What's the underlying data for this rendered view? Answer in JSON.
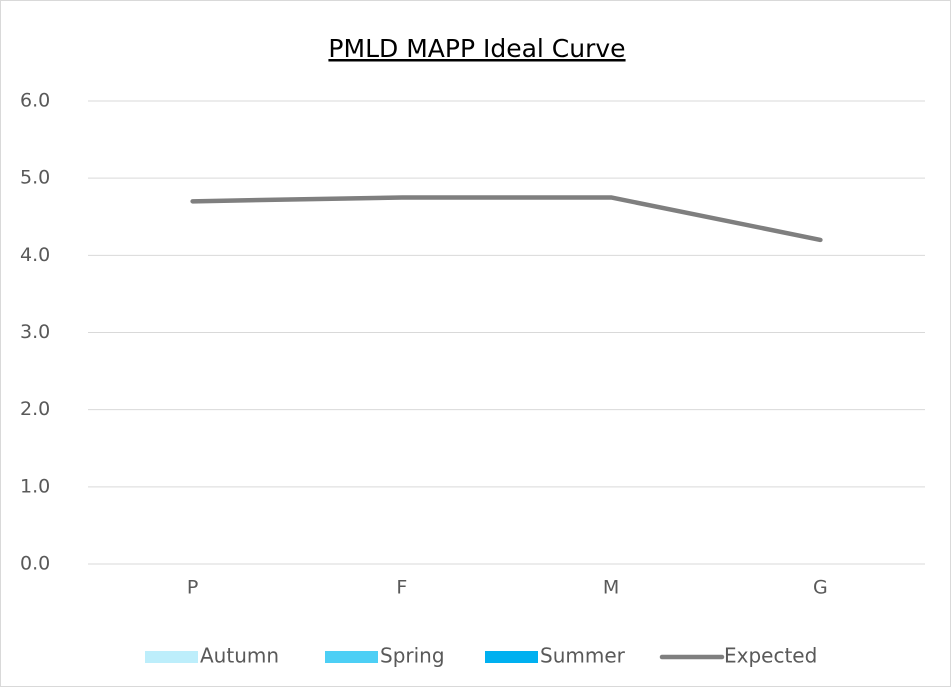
{
  "chart_data": {
    "type": "line",
    "title": "PMLD MAPP Ideal Curve",
    "categories": [
      "P",
      "F",
      "M",
      "G"
    ],
    "series": [
      {
        "name": "Autumn",
        "type": "bar",
        "color": "#bdeefb",
        "values": [
          null,
          null,
          null,
          null
        ]
      },
      {
        "name": "Spring",
        "type": "bar",
        "color": "#4dcff5",
        "values": [
          null,
          null,
          null,
          null
        ]
      },
      {
        "name": "Summer",
        "type": "bar",
        "color": "#00b0f0",
        "values": [
          null,
          null,
          null,
          null
        ]
      },
      {
        "name": "Expected",
        "type": "line",
        "color": "#7f7f7f",
        "values": [
          4.7,
          4.75,
          4.75,
          4.2
        ]
      }
    ],
    "ylim": [
      0,
      6
    ],
    "yticks": [
      {
        "value": 0,
        "label": "0.0"
      },
      {
        "value": 1,
        "label": "1.0"
      },
      {
        "value": 2,
        "label": "2.0"
      },
      {
        "value": 3,
        "label": "3.0"
      },
      {
        "value": 4,
        "label": "4.0"
      },
      {
        "value": 5,
        "label": "5.0"
      },
      {
        "value": 6,
        "label": "6.0"
      }
    ],
    "grid": true,
    "legend": "bottom"
  }
}
